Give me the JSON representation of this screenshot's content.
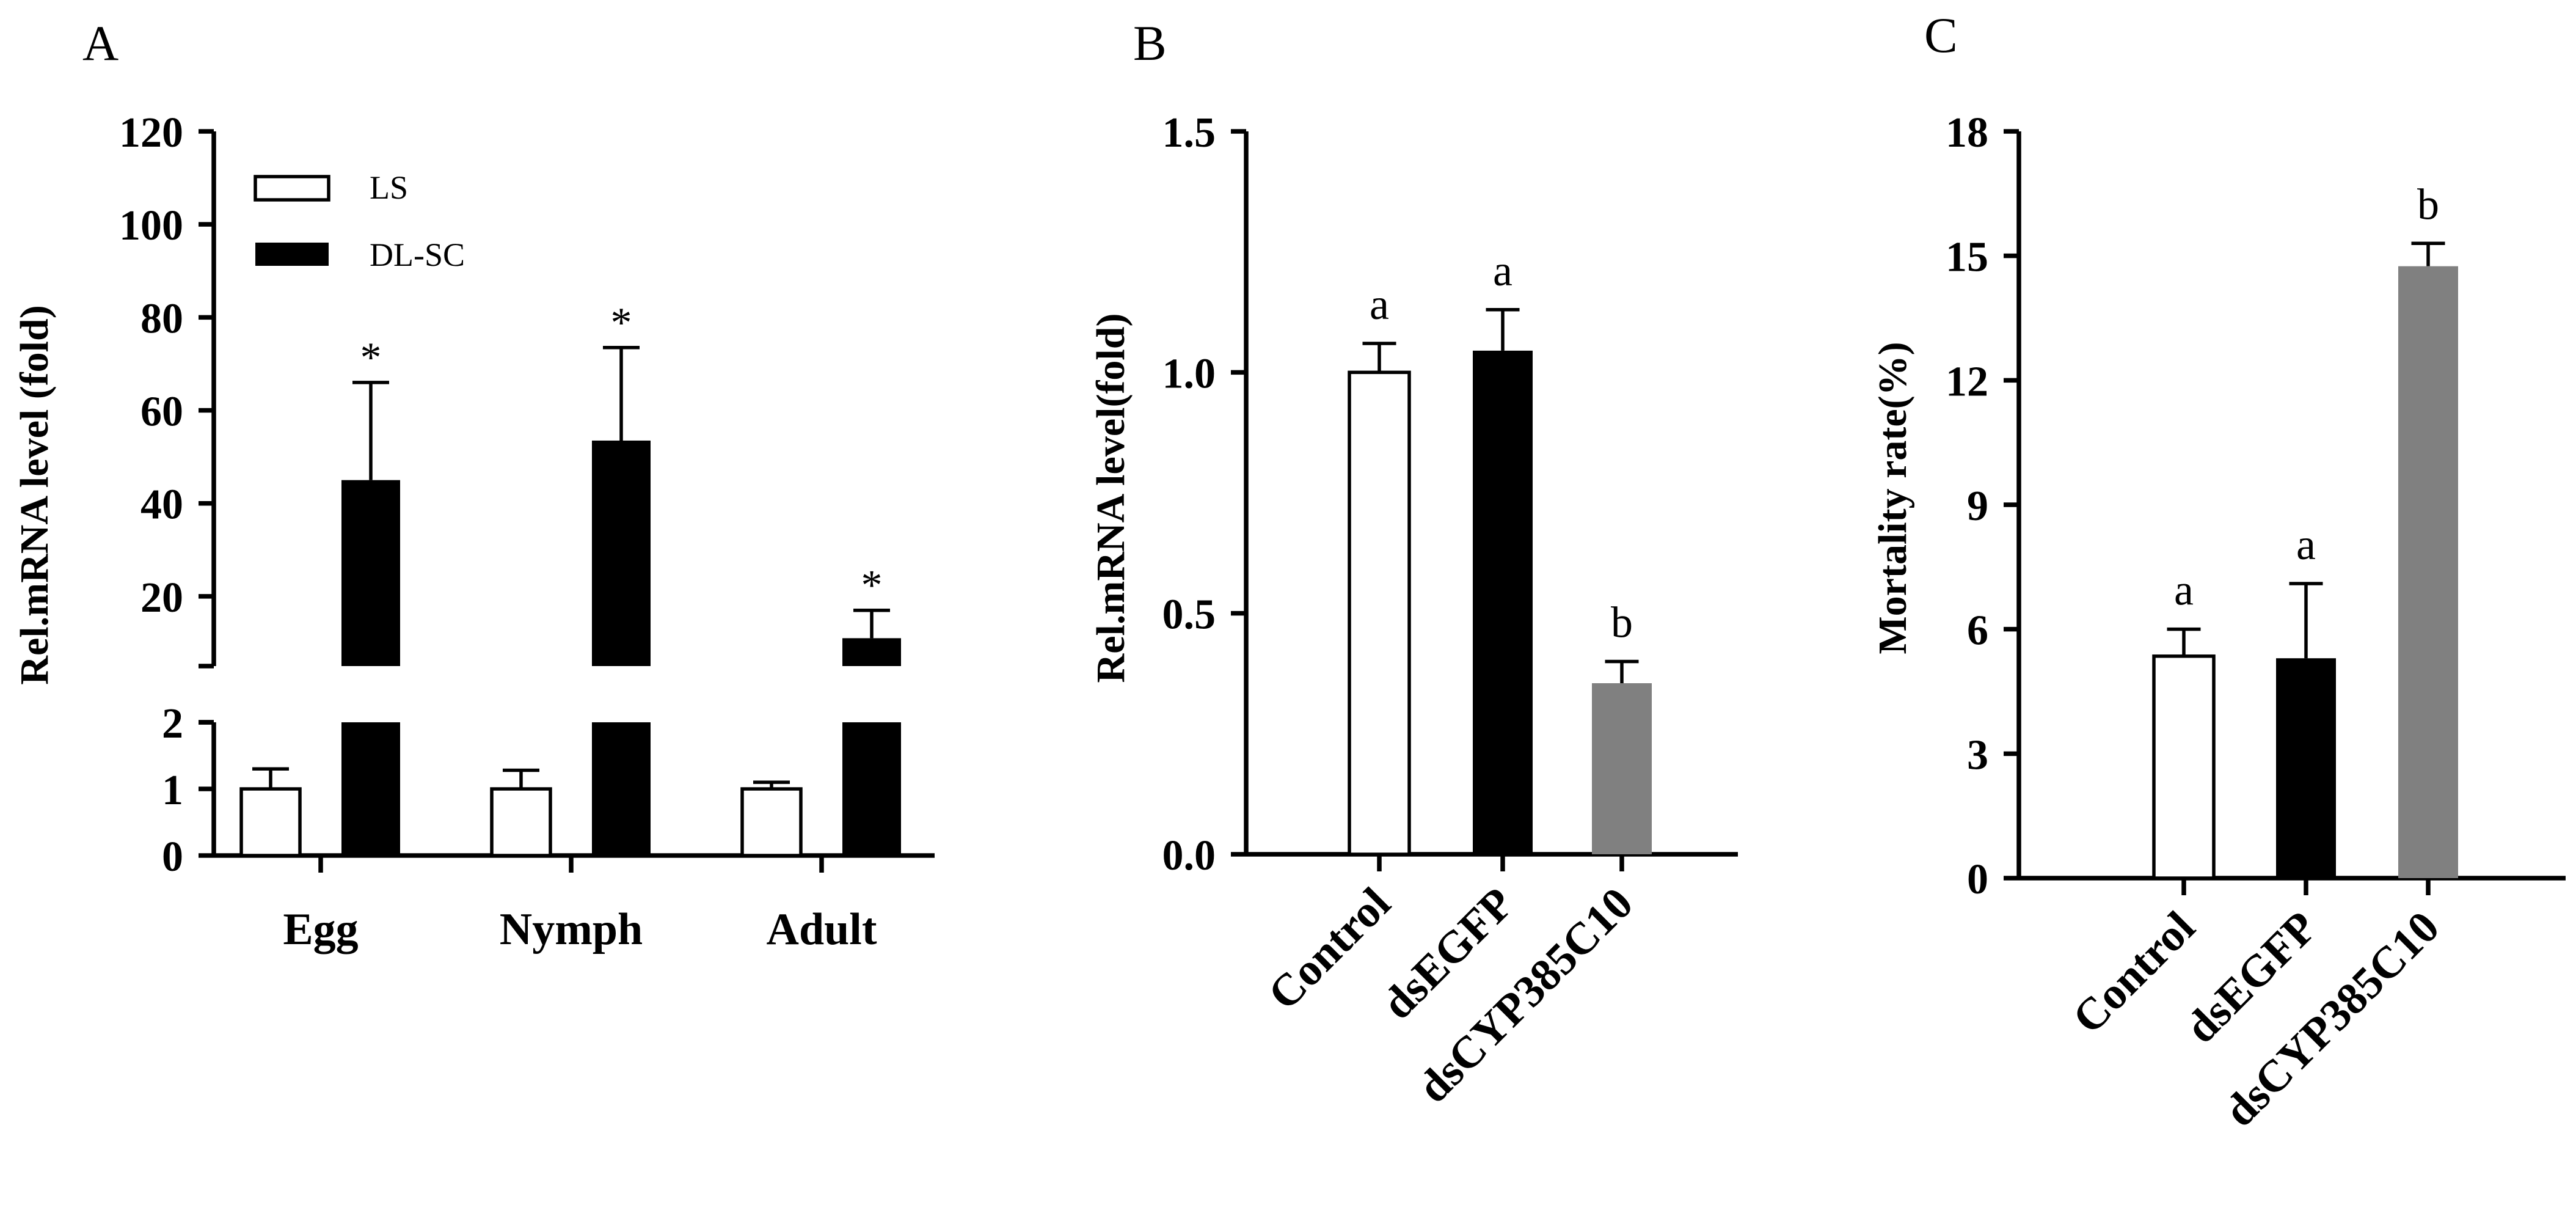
{
  "panels": [
    {
      "label": "A",
      "chart_data": {
        "type": "bar",
        "ylabel": "Rel.mRNA level (fold)",
        "xlabel": "",
        "categories": [
          "Egg",
          "Nymph",
          "Adult"
        ],
        "axis_break": {
          "lower": [
            0,
            2
          ],
          "upper": [
            5,
            120
          ]
        },
        "ylim": [
          0,
          120
        ],
        "yticks_lower": [
          "0",
          "1",
          "2"
        ],
        "yticks_upper": [
          "20",
          "40",
          "60",
          "80",
          "100",
          "120"
        ],
        "legend": {
          "position": "top-left",
          "entries": [
            "LS",
            "DL-SC"
          ]
        },
        "series": [
          {
            "name": "LS",
            "color": "#ffffff",
            "values": [
              1.0,
              1.0,
              1.0
            ],
            "errors": [
              0.3,
              0.28,
              0.1
            ]
          },
          {
            "name": "DL-SC",
            "color": "#000000",
            "values": [
              45,
              53.5,
              11
            ],
            "errors": [
              21,
              20,
              6
            ]
          }
        ],
        "annotations": [
          "*",
          "*",
          "*"
        ]
      }
    },
    {
      "label": "B",
      "chart_data": {
        "type": "bar",
        "ylabel": "Rel.mRNA level(fold)",
        "xlabel": "",
        "categories": [
          "Control",
          "dsEGFP",
          "dsCYP385C10"
        ],
        "ylim": [
          0,
          1.5
        ],
        "yticks": [
          "0.0",
          "0.5",
          "1.0",
          "1.5"
        ],
        "colors": [
          "#ffffff",
          "#000000",
          "#808080"
        ],
        "values": [
          1.0,
          1.045,
          0.355
        ],
        "errors": [
          0.06,
          0.085,
          0.045
        ],
        "letters": [
          "a",
          "a",
          "b"
        ]
      }
    },
    {
      "label": "C",
      "chart_data": {
        "type": "bar",
        "ylabel": "Mortality rate(%)",
        "xlabel": "",
        "categories": [
          "Control",
          "dsEGFP",
          "dsCYP385C10"
        ],
        "ylim": [
          0,
          18
        ],
        "yticks": [
          "0",
          "3",
          "6",
          "9",
          "12",
          "15",
          "18"
        ],
        "colors": [
          "#ffffff",
          "#000000",
          "#808080"
        ],
        "values": [
          5.35,
          5.3,
          14.75
        ],
        "errors": [
          0.65,
          1.8,
          0.55
        ],
        "letters": [
          "a",
          "a",
          "b"
        ]
      }
    }
  ]
}
